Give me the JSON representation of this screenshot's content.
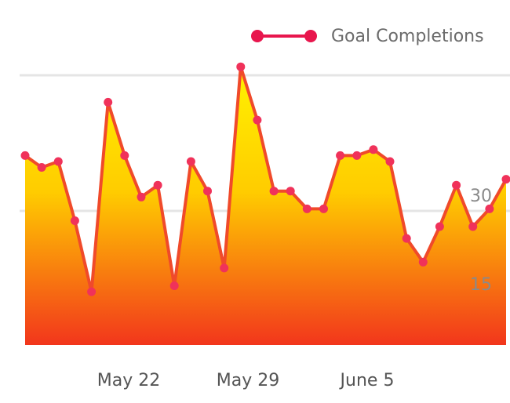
{
  "chart_data": {
    "type": "area",
    "series": [
      {
        "name": "Goal Completions",
        "values": [
          32,
          30,
          31,
          21,
          9,
          41,
          32,
          25,
          27,
          10,
          31,
          26,
          13,
          47,
          38,
          26,
          26,
          23,
          23,
          32,
          32,
          33,
          31,
          18,
          14,
          20,
          27,
          20,
          23,
          28
        ]
      }
    ],
    "x_tick_labels": [
      "May 22",
      "May 29",
      "June 5"
    ],
    "y_tick_labels": [
      "15",
      "30"
    ],
    "ylim": [
      0,
      53
    ],
    "grid": true,
    "legend_position": "top-right",
    "colors": {
      "line": "#f04a2a",
      "marker": "#f0325a",
      "fill_top": "#ffe500",
      "fill_bottom": "#f03a1f",
      "legend": "#e8164d",
      "grid": "#e5e5e5"
    }
  }
}
